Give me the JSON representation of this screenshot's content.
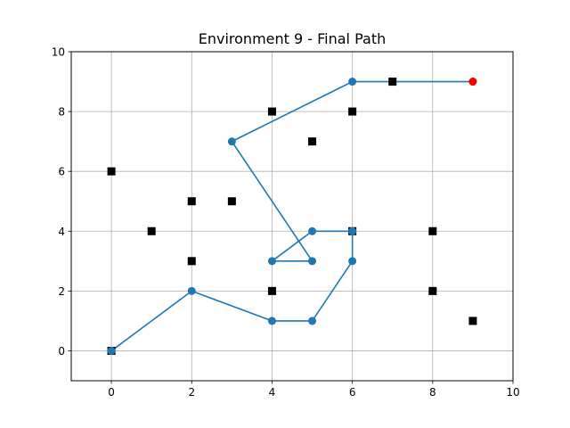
{
  "chart_data": {
    "type": "scatter",
    "title": "Environment 9 - Final Path",
    "xlabel": "",
    "ylabel": "",
    "xlim": [
      -1,
      10
    ],
    "ylim": [
      -1,
      10
    ],
    "xticks": [
      0,
      2,
      4,
      6,
      8,
      10
    ],
    "yticks": [
      0,
      2,
      4,
      6,
      8,
      10
    ],
    "grid": true,
    "legend": "none",
    "series": [
      {
        "kind": "obstacles",
        "marker": "square",
        "color": "#000000",
        "points": [
          [
            0,
            0
          ],
          [
            0,
            6
          ],
          [
            1,
            4
          ],
          [
            2,
            5
          ],
          [
            2,
            3
          ],
          [
            3,
            5
          ],
          [
            4,
            8
          ],
          [
            4,
            2
          ],
          [
            5,
            7
          ],
          [
            6,
            8
          ],
          [
            6,
            4
          ],
          [
            7,
            9
          ],
          [
            8,
            4
          ],
          [
            8,
            2
          ],
          [
            9,
            1
          ]
        ]
      },
      {
        "kind": "path",
        "marker": "circle",
        "color": "#1f77b4",
        "points": [
          [
            0,
            0
          ],
          [
            2,
            2
          ],
          [
            4,
            1
          ],
          [
            5,
            1
          ],
          [
            6,
            3
          ],
          [
            6,
            4
          ],
          [
            5,
            4
          ],
          [
            4,
            3
          ],
          [
            5,
            3
          ],
          [
            3,
            7
          ],
          [
            6,
            9
          ],
          [
            9,
            9
          ]
        ]
      },
      {
        "kind": "goal",
        "marker": "circle",
        "color": "#ff0000",
        "points": [
          [
            9,
            9
          ]
        ]
      }
    ]
  }
}
